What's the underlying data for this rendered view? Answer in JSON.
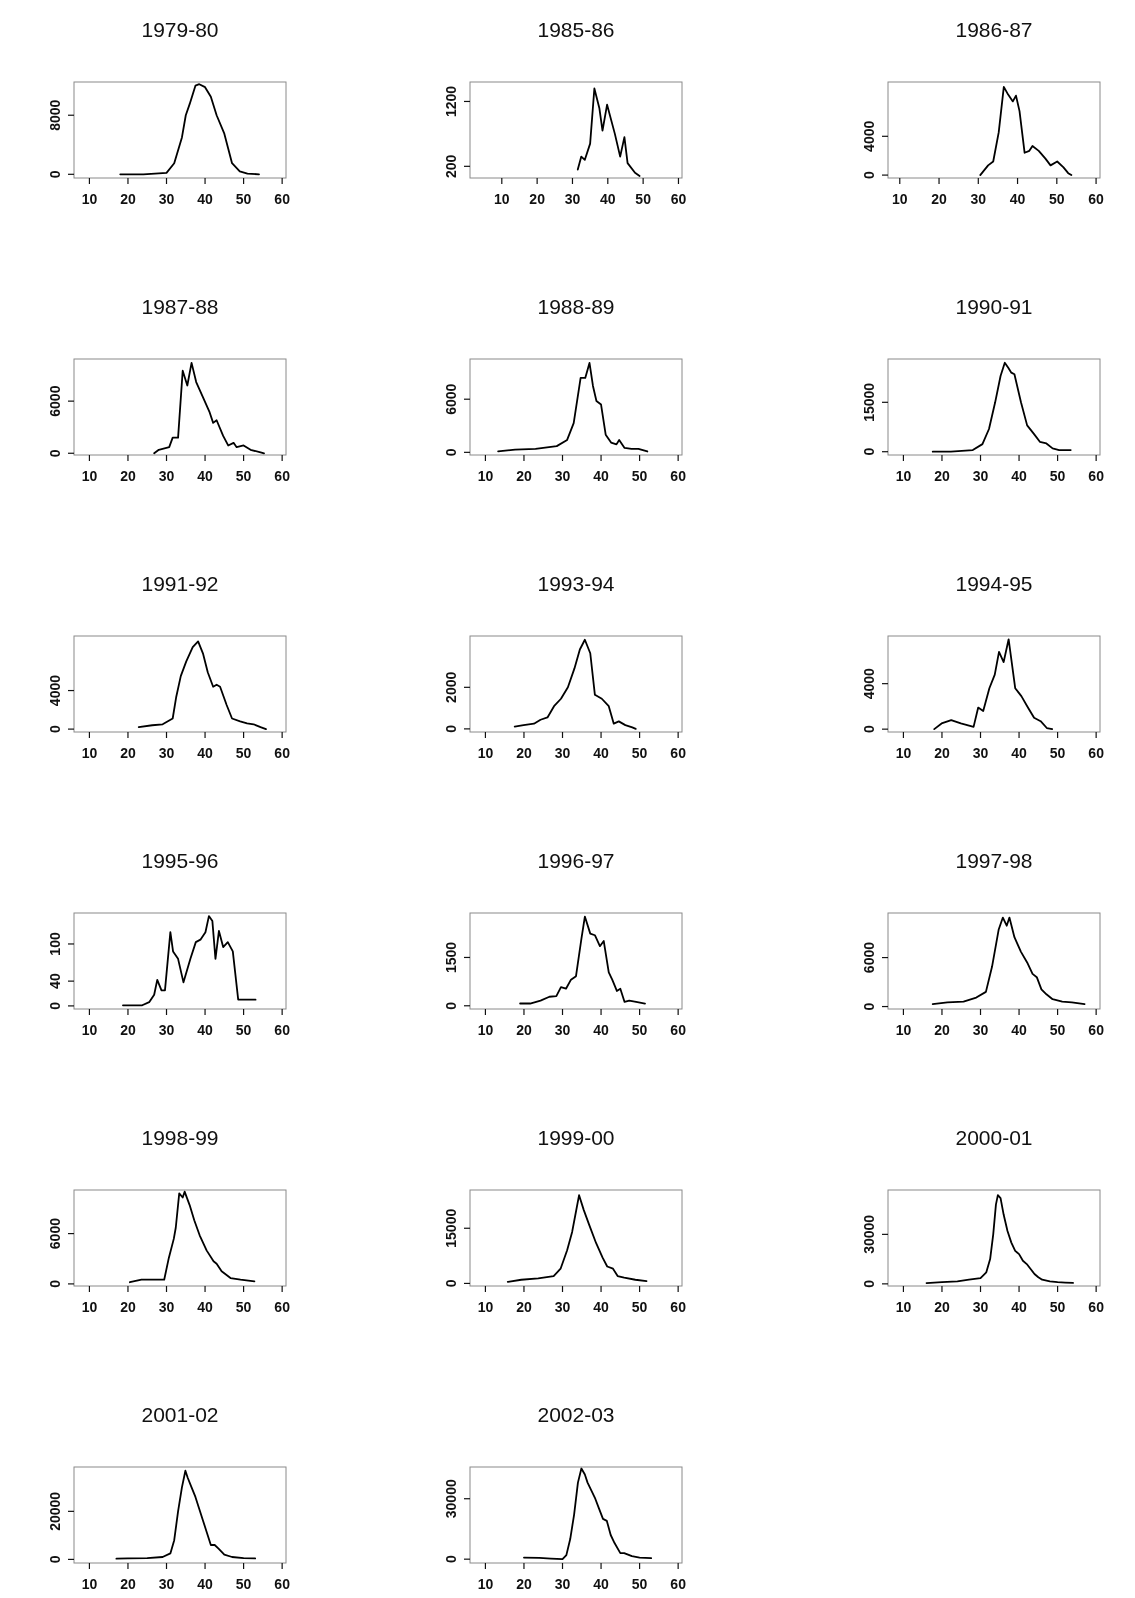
{
  "chart_data": [
    {
      "type": "line",
      "title": "1979-80",
      "color": "#000000",
      "xlim": [
        6,
        61
      ],
      "ylim": [
        -500,
        12500
      ],
      "xticks": [
        10,
        20,
        30,
        40,
        50,
        60
      ],
      "yticks": [
        0,
        8000
      ],
      "x": [
        18,
        24,
        30,
        32,
        34,
        35,
        36,
        37.5,
        38.5,
        40,
        41.5,
        43,
        45,
        46,
        47,
        49,
        51,
        54
      ],
      "values": [
        0,
        0,
        200,
        1500,
        5000,
        8000,
        9500,
        12000,
        12200,
        11800,
        10500,
        8000,
        5500,
        3500,
        1500,
        400,
        100,
        0
      ]
    },
    {
      "type": "line",
      "title": "1985-86",
      "color": "#000000",
      "xlim": [
        1,
        61
      ],
      "ylim": [
        20,
        1500
      ],
      "xticks": [
        10,
        20,
        30,
        40,
        50,
        60
      ],
      "yticks": [
        200,
        1200
      ],
      "x": [
        31.5,
        32.5,
        33.5,
        35,
        36.2,
        37.6,
        38.5,
        39.8,
        42,
        43.5,
        44.7,
        45.6,
        47.7,
        49
      ],
      "values": [
        150,
        350,
        300,
        550,
        1400,
        1100,
        750,
        1150,
        700,
        350,
        650,
        250,
        100,
        50
      ]
    },
    {
      "type": "line",
      "title": "1986-87",
      "color": "#000000",
      "xlim": [
        7,
        61
      ],
      "ylim": [
        -300,
        9600
      ],
      "xticks": [
        10,
        20,
        30,
        40,
        50,
        60
      ],
      "yticks": [
        0,
        4000
      ],
      "x": [
        30.5,
        32.5,
        33.8,
        35.2,
        36.5,
        37.6,
        38.8,
        39.6,
        40.5,
        41.8,
        43,
        43.8,
        45.4,
        47.1,
        48.4,
        50.1,
        51.7,
        52.9,
        53.7
      ],
      "values": [
        0,
        1000,
        1400,
        4400,
        9100,
        8300,
        7600,
        8200,
        6600,
        2300,
        2500,
        3000,
        2500,
        1700,
        1000,
        1400,
        800,
        200,
        0
      ]
    },
    {
      "type": "line",
      "title": "1987-88",
      "color": "#000000",
      "xlim": [
        6,
        61
      ],
      "ylim": [
        -200,
        10850
      ],
      "xticks": [
        10,
        20,
        30,
        40,
        50,
        60
      ],
      "yticks": [
        0,
        6000
      ],
      "x": [
        26.8,
        28,
        30.7,
        31.6,
        33,
        34.2,
        35.4,
        36.5,
        37.7,
        39.5,
        41.2,
        42.1,
        43,
        44.7,
        46,
        47.4,
        48.2,
        50,
        51.8,
        54.4,
        55.3
      ],
      "values": [
        0,
        400,
        700,
        1800,
        1800,
        9500,
        7800,
        10400,
        8200,
        6400,
        4700,
        3500,
        3800,
        2000,
        900,
        1200,
        700,
        900,
        400,
        100,
        0
      ]
    },
    {
      "type": "line",
      "title": "1988-89",
      "color": "#000000",
      "xlim": [
        6,
        61
      ],
      "ylim": [
        -300,
        10540
      ],
      "xticks": [
        10,
        20,
        30,
        40,
        50,
        60
      ],
      "yticks": [
        0,
        6000
      ],
      "x": [
        13.3,
        17.7,
        23,
        28.5,
        31.2,
        32.9,
        34.7,
        35.9,
        37,
        37.9,
        38.8,
        40,
        41.2,
        42.6,
        44,
        44.7,
        46.1,
        47.9,
        49.7,
        52
      ],
      "values": [
        100,
        300,
        400,
        700,
        1400,
        3300,
        8400,
        8400,
        10100,
        7500,
        5800,
        5400,
        2000,
        1100,
        900,
        1400,
        500,
        400,
        400,
        100
      ]
    },
    {
      "type": "line",
      "title": "1990-91",
      "color": "#000000",
      "xlim": [
        6,
        61
      ],
      "ylim": [
        -1000,
        28150
      ],
      "xticks": [
        10,
        20,
        30,
        40,
        50,
        60
      ],
      "yticks": [
        0,
        15000
      ],
      "x": [
        17.6,
        22.3,
        28,
        30.5,
        32.2,
        33.8,
        35.2,
        36.3,
        37.2,
        38,
        38.8,
        40.5,
        42.1,
        43.8,
        45.4,
        47.1,
        48.7,
        50.4,
        53.4
      ],
      "values": [
        0,
        0,
        500,
        2300,
        6900,
        15000,
        23000,
        27000,
        25500,
        24000,
        23500,
        15000,
        8000,
        5500,
        3000,
        2500,
        1000,
        500,
        500
      ]
    },
    {
      "type": "line",
      "title": "1991-92",
      "color": "#000000",
      "xlim": [
        6,
        61
      ],
      "ylim": [
        -300,
        9660
      ],
      "xticks": [
        10,
        20,
        30,
        40,
        50,
        60
      ],
      "yticks": [
        0,
        4000
      ],
      "x": [
        22.8,
        26.3,
        29,
        31.6,
        32.5,
        33.7,
        35.1,
        36.8,
        38.2,
        39.5,
        40.7,
        42.1,
        43,
        43.9,
        45.6,
        47,
        49.1,
        50.9,
        52.6,
        54.4,
        55.8
      ],
      "values": [
        200,
        400,
        500,
        1100,
        3300,
        5500,
        7000,
        8500,
        9100,
        7800,
        5900,
        4400,
        4600,
        4400,
        2500,
        1100,
        800,
        600,
        500,
        200,
        0
      ]
    },
    {
      "type": "line",
      "title": "1993-94",
      "color": "#000000",
      "xlim": [
        6,
        61
      ],
      "ylim": [
        -150,
        4470
      ],
      "xticks": [
        10,
        20,
        30,
        40,
        50,
        60
      ],
      "yticks": [
        0,
        2000
      ],
      "x": [
        17.6,
        19.9,
        22.6,
        24.3,
        26.1,
        27.8,
        29.6,
        31.4,
        33.1,
        34.5,
        35.8,
        37.2,
        38.4,
        40.2,
        42,
        43.3,
        44.6,
        46.3,
        48.1,
        49
      ],
      "values": [
        110,
        180,
        250,
        440,
        550,
        1090,
        1450,
        2000,
        2910,
        3820,
        4290,
        3640,
        1640,
        1450,
        1090,
        250,
        360,
        180,
        70,
        0
      ]
    },
    {
      "type": "line",
      "title": "1994-95",
      "color": "#000000",
      "xlim": [
        6,
        61
      ],
      "ylim": [
        -250,
        8190
      ],
      "xticks": [
        10,
        20,
        30,
        40,
        50,
        60
      ],
      "yticks": [
        0,
        4000
      ],
      "x": [
        18,
        19.9,
        22.4,
        24.9,
        28.2,
        29.4,
        30.7,
        32.3,
        33.7,
        34.8,
        36,
        37.3,
        39,
        40.6,
        42.3,
        43.9,
        45.6,
        47.2,
        48.6
      ],
      "values": [
        0,
        500,
        800,
        500,
        200,
        1900,
        1600,
        3600,
        4800,
        6800,
        5900,
        7900,
        3600,
        2900,
        1900,
        1000,
        700,
        100,
        0
      ]
    },
    {
      "type": "line",
      "title": "1995-96",
      "color": "#000000",
      "xlim": [
        6,
        61
      ],
      "ylim": [
        -5,
        150
      ],
      "xticks": [
        10,
        20,
        30,
        40,
        50,
        60
      ],
      "yticks": [
        0,
        40,
        100
      ],
      "x": [
        18.7,
        23.7,
        25.5,
        26.8,
        27.6,
        28.7,
        29.6,
        31,
        31.7,
        33,
        34.4,
        36.2,
        37.6,
        38.8,
        40.1,
        41,
        41.9,
        42.7,
        43.6,
        44.7,
        45.9,
        47.2,
        48.6,
        51.3,
        53.1
      ],
      "values": [
        1,
        1,
        6,
        18,
        42,
        25,
        25,
        119,
        88,
        76,
        38,
        76,
        103,
        107,
        119,
        145,
        137,
        76,
        121,
        95,
        103,
        88,
        10,
        10,
        10
      ]
    },
    {
      "type": "line",
      "title": "1996-97",
      "color": "#000000",
      "xlim": [
        6,
        61
      ],
      "ylim": [
        -100,
        2880
      ],
      "xticks": [
        10,
        20,
        30,
        40,
        50,
        60
      ],
      "yticks": [
        0,
        1500
      ],
      "x": [
        19,
        21.6,
        24.3,
        26.6,
        28.4,
        29.6,
        30.9,
        32.2,
        33.5,
        34.9,
        35.8,
        37.2,
        38.4,
        39.7,
        40.7,
        42,
        42.9,
        44.1,
        45,
        46.1,
        47.3,
        49.1,
        51.4
      ],
      "values": [
        70,
        70,
        160,
        280,
        300,
        580,
        530,
        810,
        920,
        2080,
        2770,
        2240,
        2190,
        1850,
        2010,
        1040,
        810,
        460,
        530,
        120,
        160,
        120,
        70
      ]
    },
    {
      "type": "line",
      "title": "1997-98",
      "color": "#000000",
      "xlim": [
        6,
        61
      ],
      "ylim": [
        -300,
        11460
      ],
      "xticks": [
        10,
        20,
        30,
        40,
        50,
        60
      ],
      "yticks": [
        0,
        6000
      ],
      "x": [
        17.6,
        21.4,
        25.6,
        28.9,
        31.4,
        33,
        34.7,
        35.8,
        36.8,
        37.5,
        38.8,
        40.5,
        42.1,
        43.5,
        44.6,
        45.8,
        47.1,
        48.7,
        51.2,
        53.7,
        57
      ],
      "values": [
        300,
        500,
        600,
        1100,
        1800,
        4900,
        9400,
        10900,
        9900,
        10900,
        8500,
        6700,
        5400,
        4000,
        3600,
        2100,
        1500,
        900,
        600,
        500,
        300
      ]
    },
    {
      "type": "line",
      "title": "1998-99",
      "color": "#000000",
      "xlim": [
        6,
        61
      ],
      "ylim": [
        -250,
        11200
      ],
      "xticks": [
        10,
        20,
        30,
        40,
        50,
        60
      ],
      "yticks": [
        0,
        6000
      ],
      "x": [
        20.5,
        23.5,
        26.2,
        29.4,
        30.6,
        31.9,
        32.4,
        33.3,
        34.2,
        34.7,
        36,
        37.2,
        38.6,
        40.4,
        42.2,
        43,
        44.3,
        46.6,
        49.2,
        52.8
      ],
      "values": [
        200,
        500,
        500,
        500,
        3100,
        5400,
        6700,
        10800,
        10300,
        11000,
        9400,
        7600,
        5800,
        4000,
        2700,
        2400,
        1500,
        700,
        500,
        300
      ]
    },
    {
      "type": "line",
      "title": "1999-00",
      "color": "#000000",
      "xlim": [
        6,
        61
      ],
      "ylim": [
        -700,
        25400
      ],
      "xticks": [
        10,
        20,
        30,
        40,
        50,
        60
      ],
      "yticks": [
        0,
        15000
      ],
      "x": [
        15.8,
        19.3,
        23.7,
        27.7,
        29.5,
        31.2,
        32.5,
        33.4,
        34.3,
        35.5,
        36.9,
        38.7,
        40.4,
        41.6,
        43.1,
        44.3,
        46,
        48.9,
        51.8
      ],
      "values": [
        400,
        1000,
        1400,
        2000,
        4000,
        9000,
        14000,
        19000,
        24000,
        20000,
        16000,
        11000,
        7000,
        4600,
        4000,
        2000,
        1600,
        1000,
        600
      ]
    },
    {
      "type": "line",
      "title": "2000-01",
      "color": "#000000",
      "xlim": [
        6,
        61
      ],
      "ylim": [
        -1300,
        56900
      ],
      "xticks": [
        10,
        20,
        30,
        40,
        50,
        60
      ],
      "yticks": [
        0,
        30000
      ],
      "x": [
        16,
        20,
        24,
        27,
        30,
        31.5,
        32.5,
        33.3,
        34,
        34.5,
        35.2,
        36,
        37,
        38,
        39,
        40,
        41,
        42,
        43,
        44,
        45,
        46,
        48,
        50,
        52,
        54
      ],
      "values": [
        500,
        1000,
        1500,
        2500,
        3500,
        7000,
        15000,
        30000,
        48000,
        53800,
        52000,
        42000,
        32000,
        25000,
        20000,
        18000,
        14000,
        12000,
        9000,
        6000,
        4000,
        2500,
        1500,
        1000,
        800,
        600
      ]
    },
    {
      "type": "line",
      "title": "2001-02",
      "color": "#000000",
      "xlim": [
        6,
        61
      ],
      "ylim": [
        -1500,
        38460
      ],
      "xticks": [
        10,
        20,
        30,
        40,
        50,
        60
      ],
      "yticks": [
        0,
        20000
      ],
      "x": [
        17,
        20,
        25,
        29,
        31,
        32,
        33,
        34,
        34.9,
        35.5,
        36.5,
        37.5,
        38.5,
        39.5,
        40.5,
        41.5,
        42.5,
        43.5,
        45,
        47,
        50,
        53
      ],
      "values": [
        300,
        400,
        500,
        1000,
        2500,
        8000,
        20000,
        30000,
        36900,
        34000,
        30000,
        26000,
        21000,
        16000,
        11000,
        6000,
        6000,
        4500,
        2000,
        1000,
        500,
        400
      ]
    },
    {
      "type": "line",
      "title": "2002-03",
      "color": "#000000",
      "xlim": [
        6,
        61
      ],
      "ylim": [
        -1900,
        45750
      ],
      "xticks": [
        10,
        20,
        30,
        40,
        50,
        60
      ],
      "yticks": [
        0,
        30000
      ],
      "x": [
        20,
        24,
        27,
        30,
        31,
        32,
        33,
        34,
        34.9,
        35.8,
        36.5,
        37.5,
        38.5,
        39.5,
        40.5,
        41.5,
        42.5,
        43.5,
        45,
        46,
        48,
        50,
        53
      ],
      "values": [
        800,
        600,
        300,
        0,
        2000,
        10000,
        22000,
        38000,
        45000,
        42000,
        38000,
        34000,
        30000,
        25000,
        20000,
        19000,
        12000,
        8000,
        3000,
        3000,
        1500,
        800,
        500
      ]
    }
  ]
}
